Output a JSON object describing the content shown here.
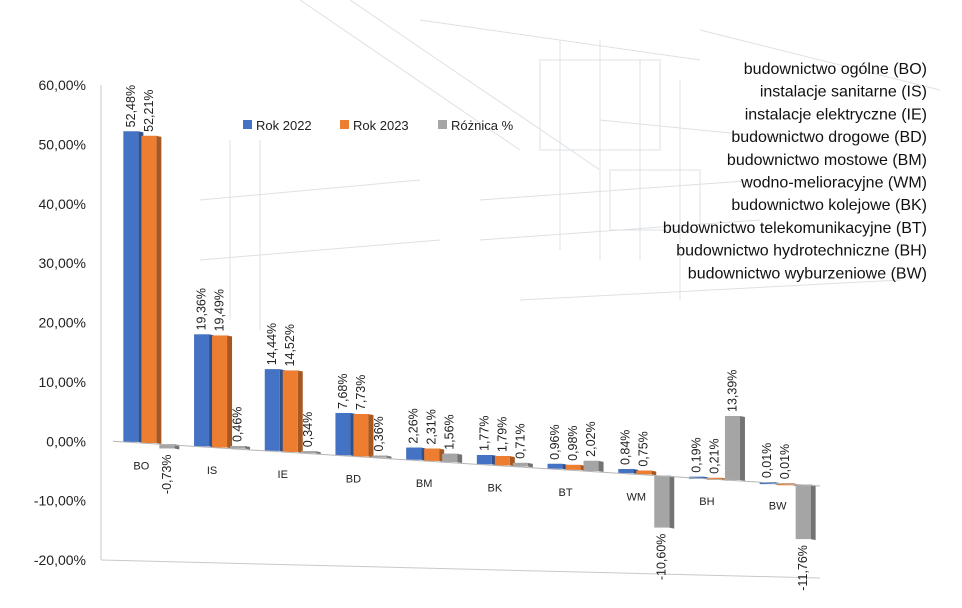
{
  "colors": {
    "rok2022": "#4472C4",
    "rok2023": "#ED7D31",
    "roznica": "#A5A5A5"
  },
  "chart_data": {
    "type": "bar",
    "categories": [
      "BO",
      "IS",
      "IE",
      "BD",
      "BM",
      "BK",
      "BT",
      "WM",
      "BH",
      "BW"
    ],
    "series": [
      {
        "name": "Rok 2022",
        "values": [
          52.48,
          19.36,
          14.44,
          7.68,
          2.26,
          1.77,
          0.96,
          0.84,
          0.19,
          0.01
        ],
        "labels": [
          "52,48%",
          "19,36%",
          "14,44%",
          "7,68%",
          "2,26%",
          "1,77%",
          "0,96%",
          "0,84%",
          "0,19%",
          "0,01%"
        ]
      },
      {
        "name": "Rok 2023",
        "values": [
          52.21,
          19.49,
          14.52,
          7.73,
          2.31,
          1.79,
          0.98,
          0.75,
          0.21,
          0.01
        ],
        "labels": [
          "52,21%",
          "19,49%",
          "14,52%",
          "7,73%",
          "2,31%",
          "1,79%",
          "0,98%",
          "0,75%",
          "0,21%",
          "0,01%"
        ]
      },
      {
        "name": "Różnica %",
        "values": [
          -0.73,
          0.46,
          0.34,
          0.36,
          1.56,
          0.71,
          2.02,
          -10.6,
          13.39,
          -11.76
        ],
        "labels": [
          "-0,73%",
          "0,46%",
          "0,34%",
          "0,36%",
          "1,56%",
          "0,71%",
          "2,02%",
          "-10,60%",
          "13,39%",
          "-11,76%"
        ]
      }
    ],
    "ylim": [
      -20,
      60
    ],
    "yticks": [
      "-20,00%",
      "-10,00%",
      "0,00%",
      "10,00%",
      "20,00%",
      "30,00%",
      "40,00%",
      "50,00%",
      "60,00%"
    ],
    "legend_position": "top-center",
    "grid": false,
    "category_key": [
      "budownictwo ogólne (BO)",
      "instalacje sanitarne (IS)",
      "instalacje elektryczne (IE)",
      "budownictwo drogowe (BD)",
      "budownictwo mostowe (BM)",
      "wodno-melioracyjne (WM)",
      "budownictwo kolejowe (BK)",
      "budownictwo telekomunikacyjne (BT)",
      "budownictwo hydrotechniczne (BH)",
      "budownictwo wyburzeniowe (BW)"
    ]
  }
}
